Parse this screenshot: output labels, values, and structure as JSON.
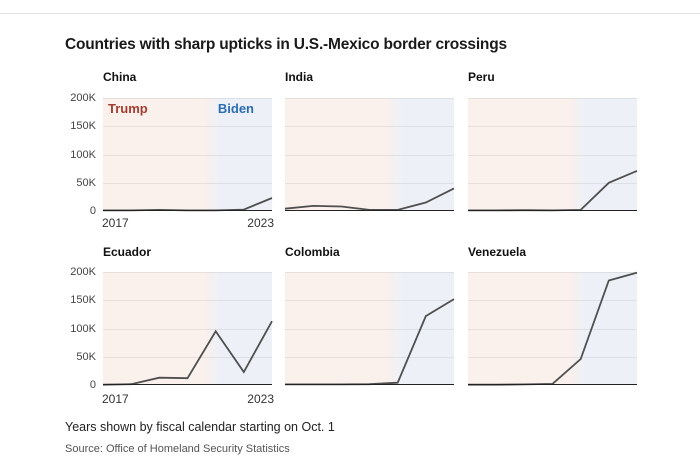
{
  "page": {
    "title": "Countries with sharp upticks in U.S.-Mexico border crossings",
    "note": "Years shown by fiscal calendar starting on Oct. 1",
    "source": "Source: Office of Homeland Security Statistics"
  },
  "era_labels": {
    "trump": "Trump",
    "biden": "Biden"
  },
  "colors": {
    "trump_label": "#a53c30",
    "biden_label": "#2b6cb3",
    "trump_era_bg": "#faf0ec",
    "biden_era_bg": "#edf1f7",
    "line": "#4f4f4f",
    "axis": "#222222",
    "grid": "#00000012",
    "title_text": "#1a1a1a",
    "tick_text": "#444444"
  },
  "chart_data": {
    "type": "line",
    "x": [
      2017,
      2018,
      2019,
      2020,
      2021,
      2022,
      2023
    ],
    "ylim": [
      0,
      200000
    ],
    "yticks": [
      "200K",
      "150K",
      "100K",
      "50K",
      "0"
    ],
    "xticks": [
      "2017",
      "2023"
    ],
    "era_transition_year": 2021,
    "grid": true,
    "legend_position": "in-plot-top (Trump left, Biden right, first chart only)",
    "series": [
      {
        "name": "China",
        "values": [
          1000,
          1000,
          2000,
          1000,
          1000,
          2500,
          23000
        ],
        "show_y_axis_labels": true,
        "show_x_axis_labels": true,
        "show_era_labels": true
      },
      {
        "name": "India",
        "values": [
          4000,
          9000,
          8000,
          2000,
          2000,
          15000,
          40000
        ],
        "show_y_axis_labels": false,
        "show_x_axis_labels": false,
        "show_era_labels": false
      },
      {
        "name": "Peru",
        "values": [
          1000,
          1000,
          1500,
          1000,
          2000,
          50000,
          71000
        ],
        "show_y_axis_labels": false,
        "show_x_axis_labels": false,
        "show_era_labels": false
      },
      {
        "name": "Ecuador",
        "values": [
          500,
          1500,
          13000,
          12000,
          95000,
          23000,
          113000
        ],
        "show_y_axis_labels": true,
        "show_x_axis_labels": true,
        "show_era_labels": false
      },
      {
        "name": "Colombia",
        "values": [
          1000,
          1000,
          1000,
          1500,
          4000,
          122000,
          152000
        ],
        "show_y_axis_labels": false,
        "show_x_axis_labels": false,
        "show_era_labels": false
      },
      {
        "name": "Venezuela",
        "values": [
          500,
          500,
          1000,
          2000,
          46000,
          185000,
          199000
        ],
        "show_y_axis_labels": false,
        "show_x_axis_labels": false,
        "show_era_labels": false
      }
    ]
  }
}
